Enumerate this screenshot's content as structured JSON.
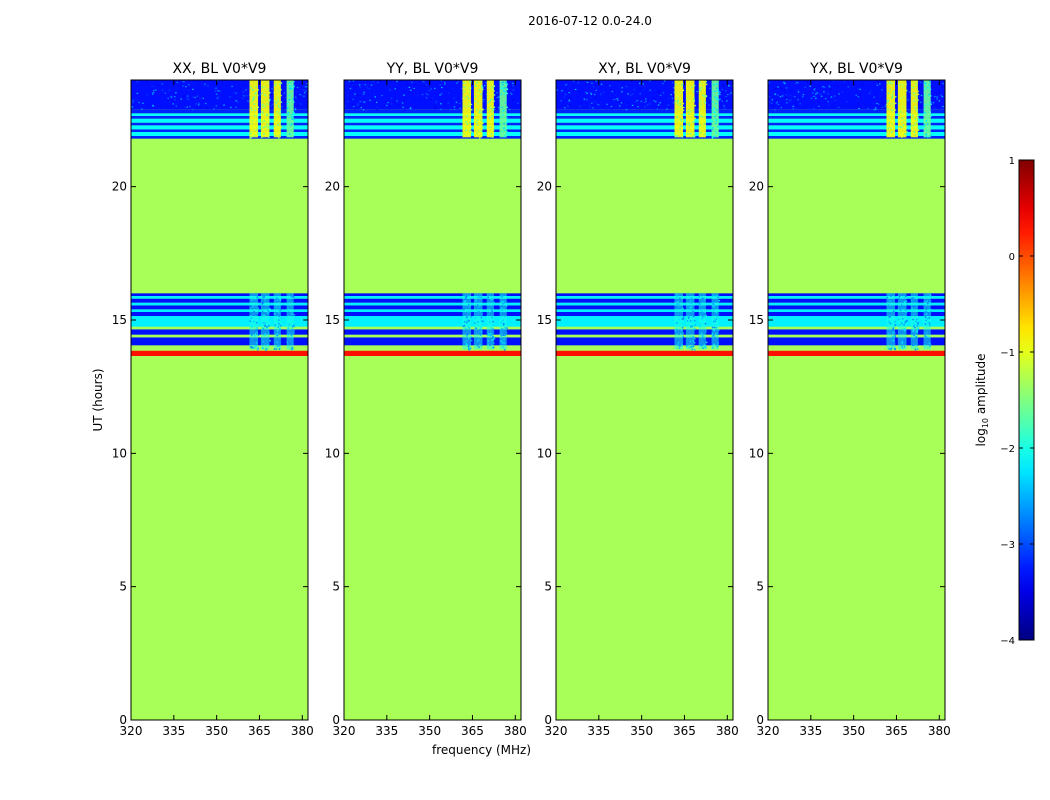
{
  "chart_data": {
    "type": "heatmap",
    "suptitle": "2016-07-12 0.0-24.0",
    "xlabel": "frequency (MHz)",
    "ylabel": "UT (hours)",
    "colorbar_label": "log10 amplitude",
    "colorbar_label_parts": {
      "main": "log",
      "sub": "10",
      "rest": " amplitude"
    },
    "colormap": "jet",
    "colorbar_range": [
      -4,
      1
    ],
    "colorbar_ticks": [
      1,
      0,
      -1,
      -2,
      -3,
      -4
    ],
    "colorbar_tick_labels": [
      "1",
      "0",
      "−1",
      "−2",
      "−3",
      "−4"
    ],
    "xlim": [
      320,
      382
    ],
    "ylim": [
      0,
      24
    ],
    "xticks": [
      320,
      335,
      350,
      365,
      380
    ],
    "yticks": [
      0,
      5,
      10,
      15,
      20
    ],
    "panels": [
      {
        "title": "XX, BL V0*V9"
      },
      {
        "title": "YY, BL V0*V9"
      },
      {
        "title": "XY, BL V0*V9"
      },
      {
        "title": "YX, BL V0*V9"
      }
    ],
    "background_value": -1.3,
    "time_bands": [
      {
        "t0": 13.65,
        "t1": 13.85,
        "value": 0.3
      },
      {
        "t0": 13.85,
        "t1": 14.05,
        "value": -1.3
      },
      {
        "t0": 14.05,
        "t1": 14.35,
        "value": -3.3
      },
      {
        "t0": 14.35,
        "t1": 14.45,
        "value": -1.3
      },
      {
        "t0": 14.45,
        "t1": 14.65,
        "value": -3.3
      },
      {
        "t0": 14.65,
        "t1": 14.75,
        "value": -1.3
      },
      {
        "t0": 14.75,
        "t1": 15.15,
        "value": -2.2
      },
      {
        "t0": 15.15,
        "t1": 15.3,
        "value": -3.3
      },
      {
        "t0": 15.3,
        "t1": 15.4,
        "value": -2.2
      },
      {
        "t0": 15.4,
        "t1": 15.55,
        "value": -3.3
      },
      {
        "t0": 15.55,
        "t1": 15.65,
        "value": -2.2
      },
      {
        "t0": 15.65,
        "t1": 15.8,
        "value": -3.3
      },
      {
        "t0": 15.8,
        "t1": 15.9,
        "value": -2.2
      },
      {
        "t0": 15.9,
        "t1": 16.0,
        "value": -3.3
      },
      {
        "t0": 21.8,
        "t1": 21.9,
        "value": -3.2
      },
      {
        "t0": 21.9,
        "t1": 22.05,
        "value": -2.1
      },
      {
        "t0": 22.05,
        "t1": 22.15,
        "value": -3.2
      },
      {
        "t0": 22.15,
        "t1": 22.3,
        "value": -2.1
      },
      {
        "t0": 22.3,
        "t1": 22.4,
        "value": -3.2
      },
      {
        "t0": 22.4,
        "t1": 22.55,
        "value": -2.1
      },
      {
        "t0": 22.55,
        "t1": 22.65,
        "value": -3.2
      },
      {
        "t0": 22.65,
        "t1": 22.75,
        "value": -2.1
      },
      {
        "t0": 22.75,
        "t1": 22.9,
        "value": -3.2
      },
      {
        "t0": 22.9,
        "t1": 24.0,
        "value": -3.3
      }
    ],
    "rfi_channels": [
      {
        "f0": 361.5,
        "f1": 364.5,
        "value": -0.9
      },
      {
        "f0": 365.5,
        "f1": 368.5,
        "value": -0.9
      },
      {
        "f0": 370.0,
        "f1": 372.5,
        "value": -0.9
      },
      {
        "f0": 374.5,
        "f1": 377.0,
        "value": -1.6
      }
    ],
    "rfi_time_ranges": [
      {
        "t0": 21.85,
        "t1": 24.0
      },
      {
        "t0": 13.9,
        "t1": 16.0
      }
    ]
  }
}
